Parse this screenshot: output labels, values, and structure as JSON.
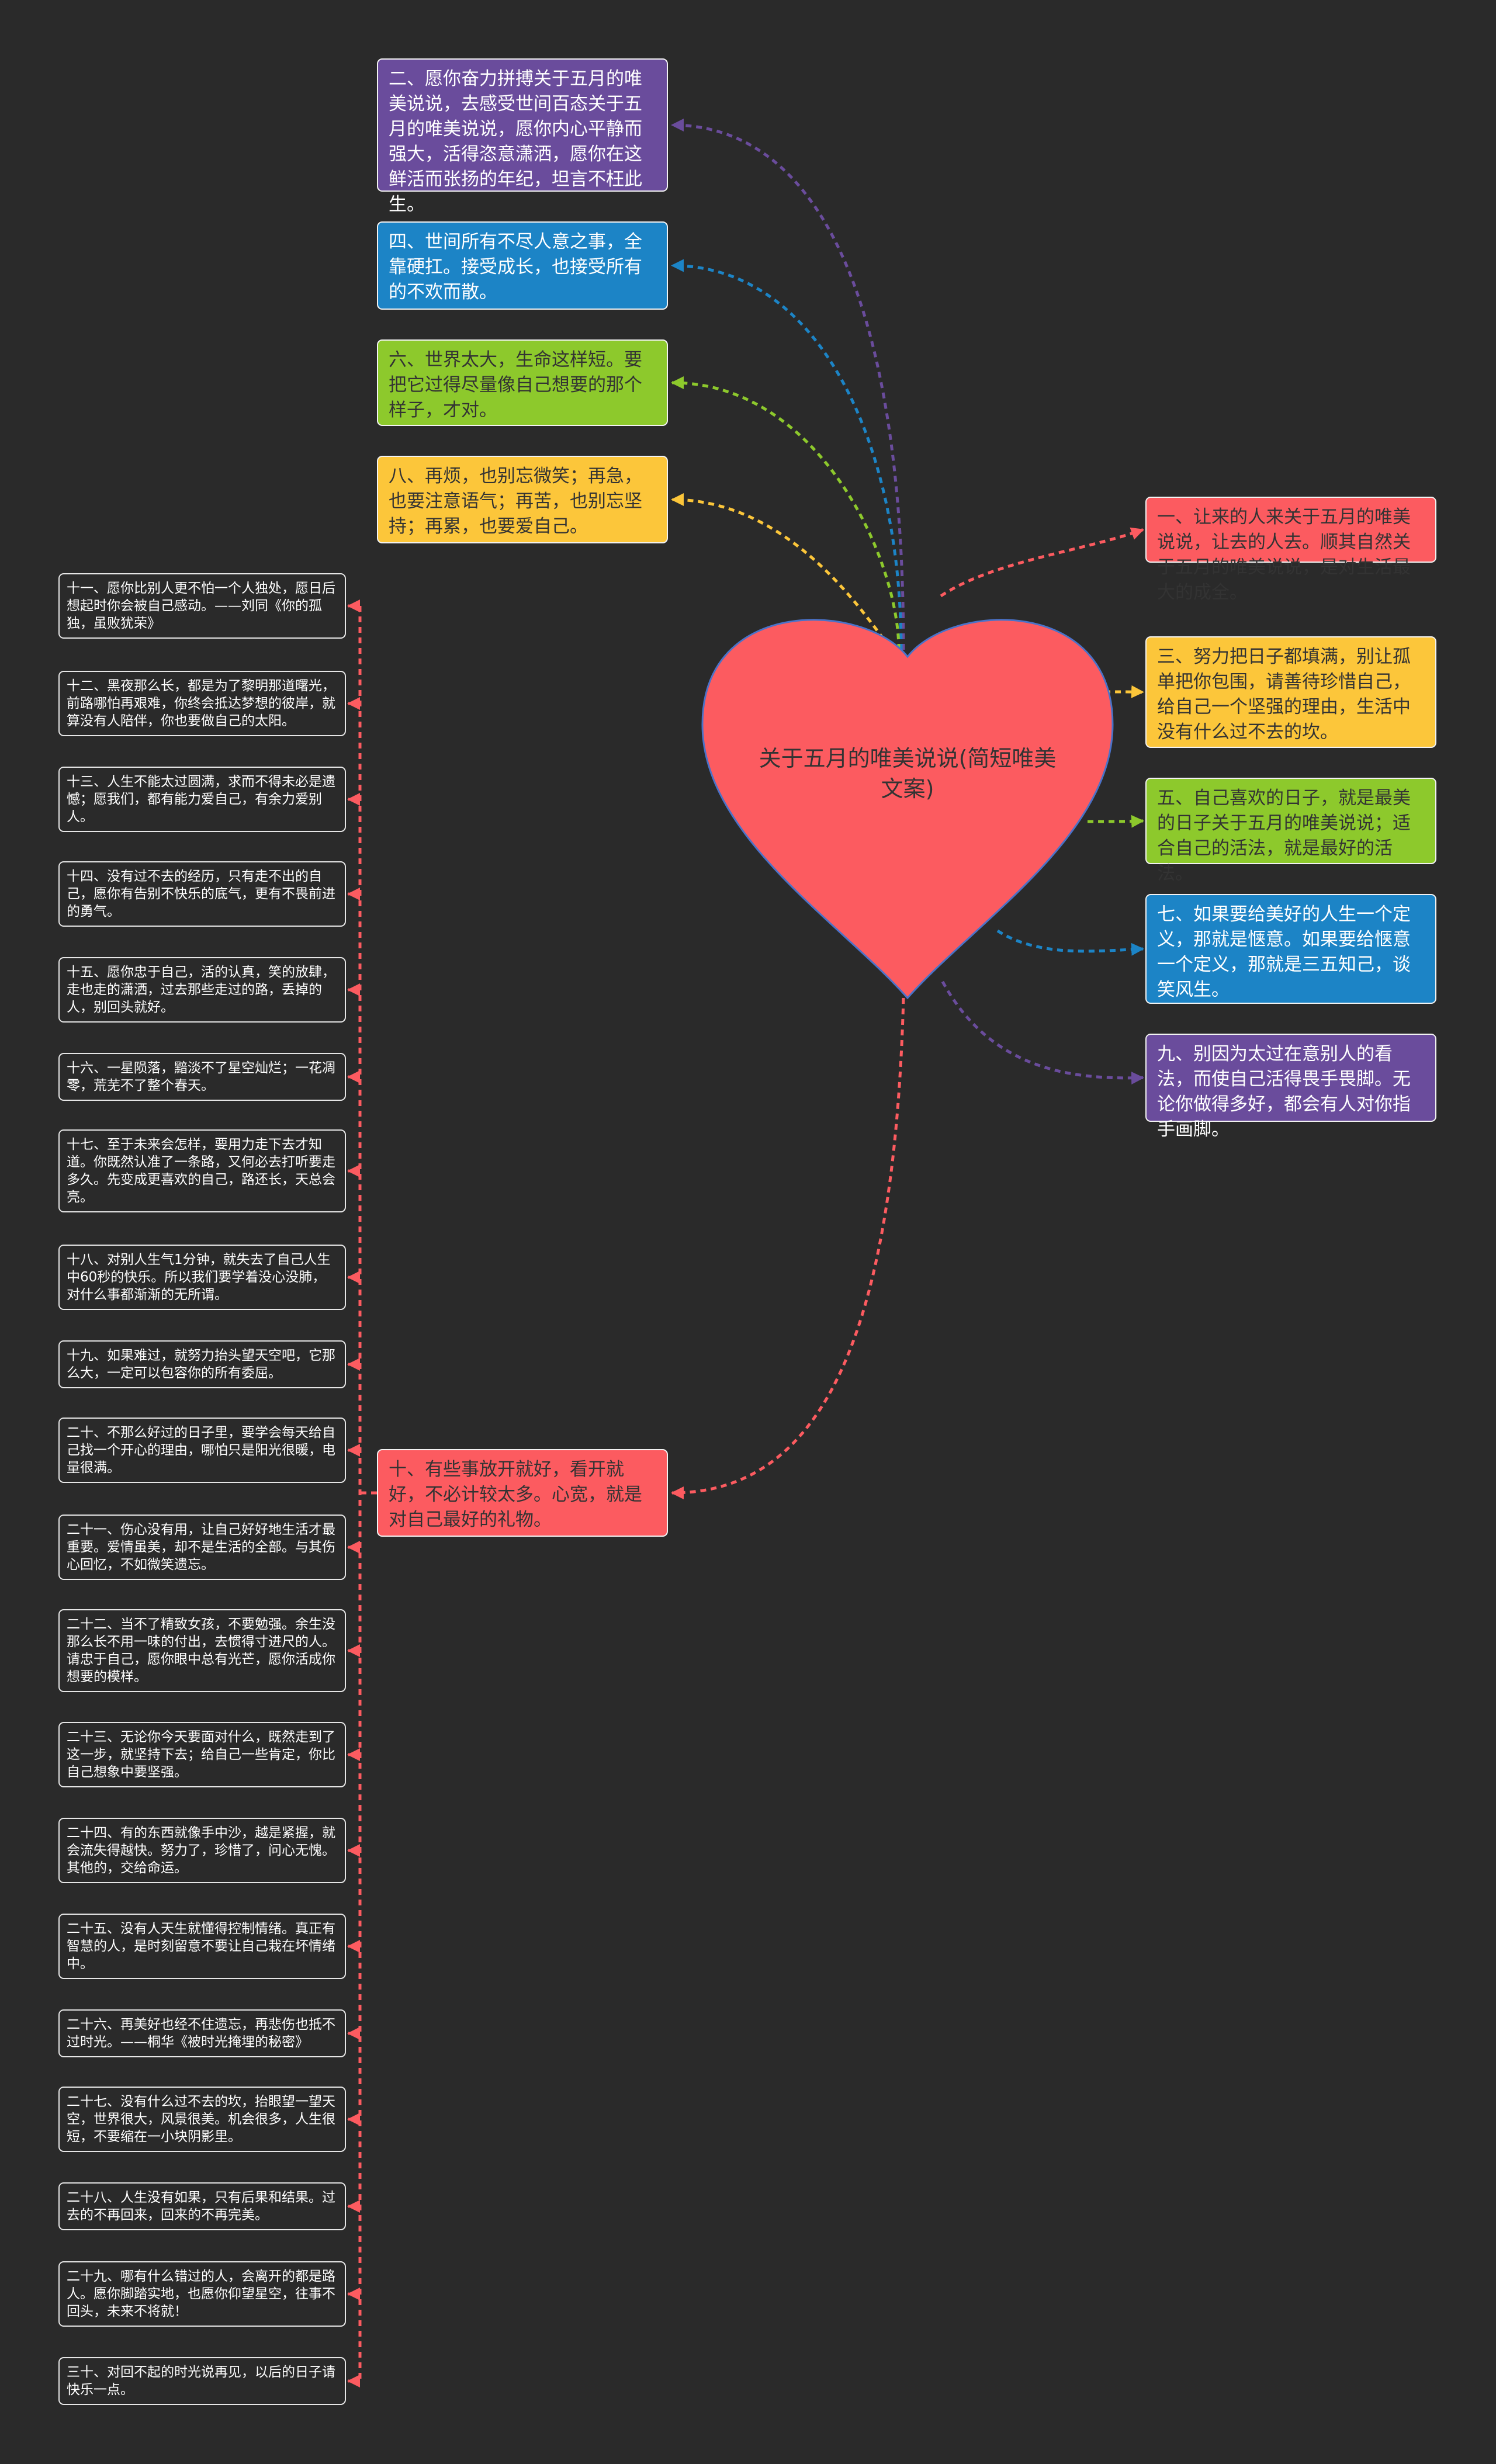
{
  "center": {
    "title": "关于五月的唯美说说(简短唯美文案)",
    "color": "#fc5b60"
  },
  "colors": {
    "background": "#2a2a2a",
    "red": "#fc5b60",
    "yellow": "#fcc63a",
    "green": "#8dc92c",
    "blue": "#1c84c6",
    "purple": "#6a4c9c"
  },
  "left_top": [
    {
      "text": "二、愿你奋力拼搏关于五月的唯美说说，去感受世间百态关于五月的唯美说说，愿你内心平静而强大，活得恣意潇洒，愿你在这鲜活而张扬的年纪，坦言不枉此生。",
      "color": "#6a4c9c"
    },
    {
      "text": "四、世间所有不尽人意之事，全靠硬扛。接受成长，也接受所有的不欢而散。",
      "color": "#1c84c6"
    },
    {
      "text": "六、世界太大，生命这样短。要把它过得尽量像自己想要的那个样子，才对。",
      "color": "#8dc92c"
    },
    {
      "text": "八、再烦，也别忘微笑；再急，也要注意语气；再苦，也别忘坚持；再累，也要爱自己。",
      "color": "#fcc63a"
    }
  ],
  "right": [
    {
      "text": " 一、让来的人来关于五月的唯美说说，让去的人去。顺其自然关于五月的唯美说说，是对生活最大的成全。",
      "color": "#fc5b60"
    },
    {
      "text": "三、努力把日子都填满，别让孤单把你包围，请善待珍惜自己，给自己一个坚强的理由，生活中没有什么过不去的坎。",
      "color": "#fcc63a"
    },
    {
      "text": "五、自己喜欢的日子，就是最美的日子关于五月的唯美说说；适合自己的活法，就是最好的活法。",
      "color": "#8dc92c"
    },
    {
      "text": "七、如果要给美好的人生一个定义，那就是惬意。如果要给惬意一个定义，那就是三五知己，谈笑风生。",
      "color": "#1c84c6"
    },
    {
      "text": "九、别因为太过在意别人的看法，而使自己活得畏手畏脚。无论你做得多好，都会有人对你指手画脚。",
      "color": "#6a4c9c"
    }
  ],
  "ten": {
    "text": "十、有些事放开就好，看开就好，不必计较太多。心宽，就是对自己最好的礼物。",
    "color": "#fc5b60"
  },
  "left_column": [
    "十一、愿你比别人更不怕一个人独处，愿日后想起时你会被自己感动。——刘同《你的孤独，虽败犹荣》",
    "十二、黑夜那么长，都是为了黎明那道曙光，前路哪怕再艰难，你终会抵达梦想的彼岸，就算没有人陪伴，你也要做自己的太阳。",
    "十三、人生不能太过圆满，求而不得未必是遗憾；愿我们，都有能力爱自己，有余力爱别人。",
    "十四、没有过不去的经历，只有走不出的自己，愿你有告别不快乐的底气，更有不畏前进的勇气。",
    "十五、愿你忠于自己，活的认真，笑的放肆，走也走的潇洒，过去那些走过的路，丢掉的人，别回头就好。",
    "十六、一星陨落，黯淡不了星空灿烂；一花凋零，荒芜不了整个春天。",
    "十七、至于未来会怎样，要用力走下去才知道。你既然认准了一条路，又何必去打听要走多久。先变成更喜欢的自己，路还长，天总会亮。",
    "十八、对别人生气1分钟，就失去了自己人生中60秒的快乐。所以我们要学着没心没肺，对什么事都渐渐的无所谓。",
    "十九、如果难过，就努力抬头望天空吧，它那么大，一定可以包容你的所有委屈。",
    "二十、不那么好过的日子里，要学会每天给自己找一个开心的理由，哪怕只是阳光很暖，电量很满。",
    "二十一、伤心没有用，让自己好好地生活才最重要。爱情虽美，却不是生活的全部。与其伤心回忆，不如微笑遗忘。",
    "二十二、当不了精致女孩，不要勉强。余生没那么长不用一味的付出，去惯得寸进尺的人。请忠于自己，愿你眼中总有光芒，愿你活成你想要的模样。",
    "二十三、无论你今天要面对什么，既然走到了这一步，就坚持下去；给自己一些肯定，你比自己想象中要坚强。",
    "二十四、有的东西就像手中沙，越是紧握，就会流失得越快。努力了，珍惜了，问心无愧。其他的，交给命运。",
    "二十五、没有人天生就懂得控制情绪。真正有智慧的人，是时刻留意不要让自己栽在坏情绪中。",
    "二十六、再美好也经不住遗忘，再悲伤也抵不过时光。——桐华《被时光掩埋的秘密》",
    "二十七、没有什么过不去的坎，抬眼望一望天空，世界很大，风景很美。机会很多，人生很短，不要缩在一小块阴影里。",
    "二十八、人生没有如果，只有后果和结果。过去的不再回来，回来的不再完美。",
    "二十九、哪有什么错过的人，会离开的都是路人。愿你脚踏实地，也愿你仰望星空，往事不回头，未来不将就！",
    "三十、对回不起的时光说再见，以后的日子请快乐一点。"
  ]
}
